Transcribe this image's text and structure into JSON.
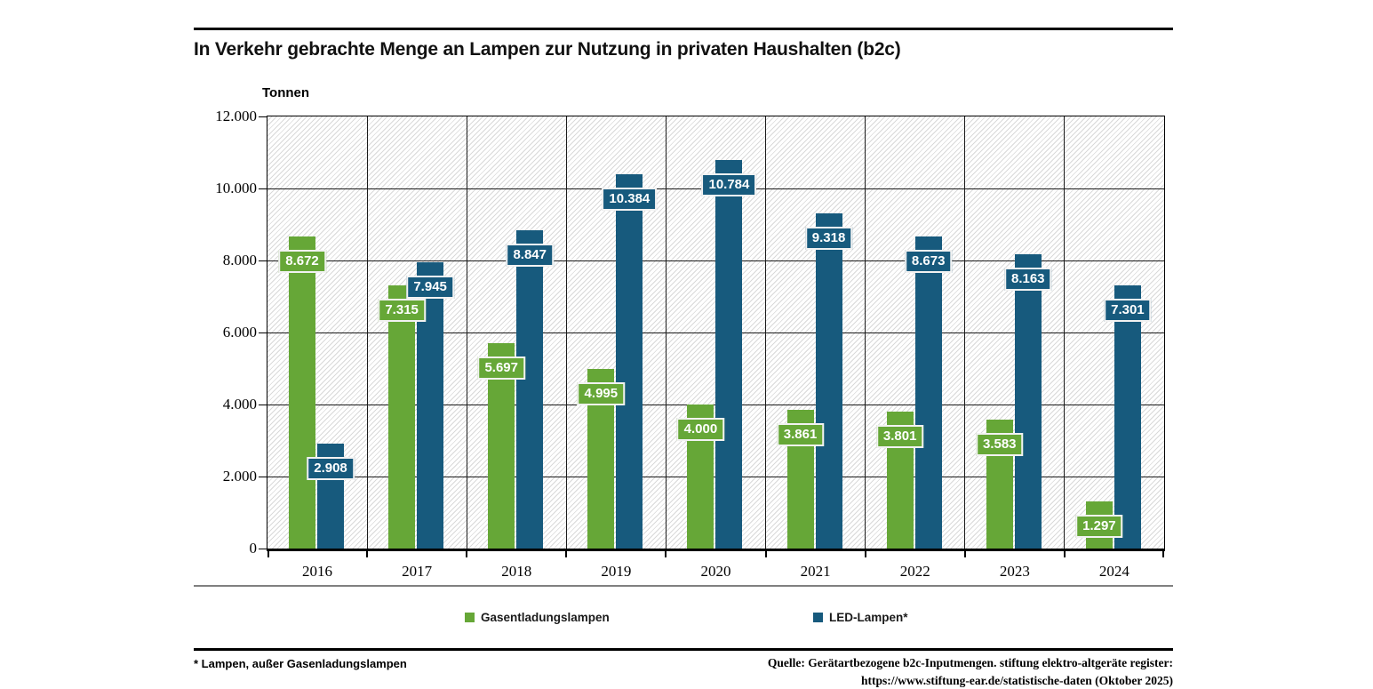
{
  "header": {
    "title": "In Verkehr gebrachte Menge an Lampen zur Nutzung in privaten Haushalten (b2c)"
  },
  "chart_data": {
    "type": "bar",
    "title": "In Verkehr gebrachte Menge an Lampen zur Nutzung in privaten Haushalten (b2c)",
    "unit_label": "Tonnen",
    "ylabel": "Tonnen",
    "xlabel": "",
    "categories": [
      "2016",
      "2017",
      "2018",
      "2019",
      "2020",
      "2021",
      "2022",
      "2023",
      "2024"
    ],
    "series": [
      {
        "name": "Gasentladungslampen",
        "color": "#66a737",
        "values": [
          8672,
          7315,
          5697,
          4995,
          4000,
          3861,
          3801,
          3583,
          1297
        ],
        "value_labels": [
          "8.672",
          "7.315",
          "5.697",
          "4.995",
          "4.000",
          "3.861",
          "3.801",
          "3.583",
          "1.297"
        ]
      },
      {
        "name": "LED-Lampen*",
        "color": "#175a7d",
        "values": [
          2908,
          7945,
          8847,
          10384,
          10784,
          9318,
          8673,
          8163,
          7301
        ],
        "value_labels": [
          "2.908",
          "7.945",
          "8.847",
          "10.384",
          "10.784",
          "9.318",
          "8.673",
          "8.163",
          "7.301"
        ]
      }
    ],
    "ylim": [
      0,
      12000
    ],
    "ytick_step": 2000,
    "ytick_labels": [
      "0",
      "2.000",
      "4.000",
      "6.000",
      "8.000",
      "10.000",
      "12.000"
    ],
    "grid": true,
    "hatch_background": true,
    "legend_position": "bottom"
  },
  "footer": {
    "footnote": "* Lampen, außer Gasenladungslampen",
    "source_line1": "Quelle: Gerätartbezogene b2c-Inputmengen. stiftung elektro-altgeräte register:",
    "source_line2": "https://www.stiftung-ear.de/statistische-daten (Oktober 2025)"
  }
}
